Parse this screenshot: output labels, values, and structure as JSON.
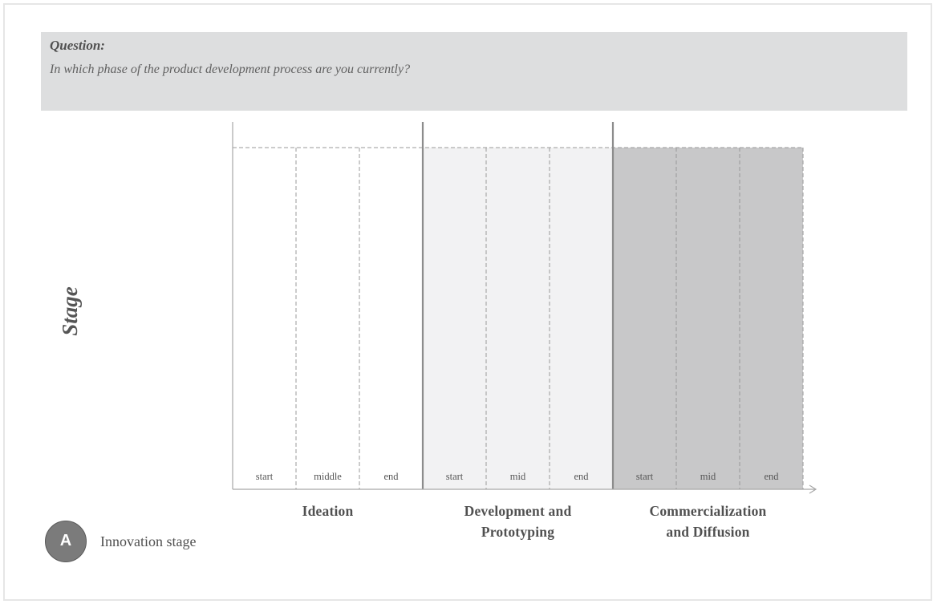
{
  "question": {
    "label": "Question:",
    "text": "In which phase of the product development process are you currently?"
  },
  "axis": {
    "y_label": "Stage"
  },
  "phases": [
    {
      "name_lines": [
        "Ideation"
      ],
      "fill": "#ffffff",
      "segments": [
        "start",
        "middle",
        "end"
      ]
    },
    {
      "name_lines": [
        "Development and",
        "Prototyping"
      ],
      "fill": "#f2f2f3",
      "segments": [
        "start",
        "mid",
        "end"
      ]
    },
    {
      "name_lines": [
        "Commercialization",
        "and Diffusion"
      ],
      "fill": "#c8c8c9",
      "segments": [
        "start",
        "mid",
        "end"
      ]
    }
  ],
  "colors": {
    "grid_line": "#999999",
    "phase_divider": "#8c8c8c",
    "axis_line": "#a8a8a8"
  },
  "legend": {
    "badge_letter": "A",
    "caption": "Innovation stage"
  }
}
